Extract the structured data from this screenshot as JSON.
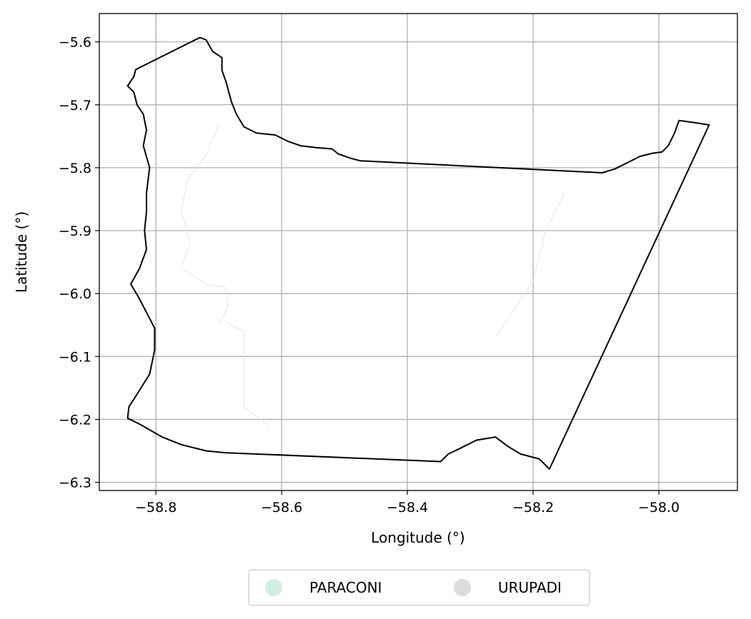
{
  "chart_data": {
    "type": "map",
    "xlabel": "Longitude (°)",
    "ylabel": "Latitude (°)",
    "xlim": [
      -58.89,
      -57.875
    ],
    "ylim": [
      -6.313,
      -5.555
    ],
    "xticks": [
      -58.8,
      -58.6,
      -58.4,
      -58.2,
      -58.0
    ],
    "xtick_labels": [
      "−58.8",
      "−58.6",
      "−58.4",
      "−58.2",
      "−58.0"
    ],
    "yticks": [
      -5.6,
      -5.7,
      -5.8,
      -5.9,
      -6.0,
      -6.1,
      -6.2,
      -6.3
    ],
    "ytick_labels": [
      "−5.6",
      "−5.7",
      "−5.8",
      "−5.9",
      "−6.0",
      "−6.1",
      "−6.2",
      "−6.3"
    ],
    "grid": true,
    "legend_position": "bottom-center",
    "legend": [
      {
        "label": "PARACONI",
        "color": "#d3ece0"
      },
      {
        "label": "URUPADI",
        "color": "#dcdcdc"
      }
    ],
    "boundary": [
      [
        -58.832,
        -5.644
      ],
      [
        -58.73,
        -5.593
      ],
      [
        -58.72,
        -5.597
      ],
      [
        -58.71,
        -5.615
      ],
      [
        -58.695,
        -5.625
      ],
      [
        -58.695,
        -5.645
      ],
      [
        -58.688,
        -5.665
      ],
      [
        -58.68,
        -5.695
      ],
      [
        -58.672,
        -5.715
      ],
      [
        -58.66,
        -5.735
      ],
      [
        -58.64,
        -5.745
      ],
      [
        -58.61,
        -5.748
      ],
      [
        -58.59,
        -5.758
      ],
      [
        -58.57,
        -5.765
      ],
      [
        -58.545,
        -5.768
      ],
      [
        -58.52,
        -5.77
      ],
      [
        -58.51,
        -5.778
      ],
      [
        -58.49,
        -5.785
      ],
      [
        -58.475,
        -5.789
      ],
      [
        -58.09,
        -5.808
      ],
      [
        -58.07,
        -5.802
      ],
      [
        -58.05,
        -5.792
      ],
      [
        -58.03,
        -5.782
      ],
      [
        -58.01,
        -5.777
      ],
      [
        -57.995,
        -5.775
      ],
      [
        -57.985,
        -5.765
      ],
      [
        -57.975,
        -5.745
      ],
      [
        -57.968,
        -5.725
      ],
      [
        -57.945,
        -5.728
      ],
      [
        -57.92,
        -5.732
      ],
      [
        -58.174,
        -6.279
      ],
      [
        -58.19,
        -6.263
      ],
      [
        -58.22,
        -6.255
      ],
      [
        -58.24,
        -6.243
      ],
      [
        -58.26,
        -6.228
      ],
      [
        -58.29,
        -6.233
      ],
      [
        -58.32,
        -6.248
      ],
      [
        -58.335,
        -6.255
      ],
      [
        -58.347,
        -6.267
      ],
      [
        -58.69,
        -6.253
      ],
      [
        -58.72,
        -6.25
      ],
      [
        -58.76,
        -6.24
      ],
      [
        -58.79,
        -6.228
      ],
      [
        -58.825,
        -6.208
      ],
      [
        -58.845,
        -6.198
      ],
      [
        -58.843,
        -6.18
      ],
      [
        -58.83,
        -6.16
      ],
      [
        -58.81,
        -6.128
      ],
      [
        -58.802,
        -6.09
      ],
      [
        -58.802,
        -6.055
      ],
      [
        -58.815,
        -6.03
      ],
      [
        -58.828,
        -6.005
      ],
      [
        -58.84,
        -5.985
      ],
      [
        -58.826,
        -5.96
      ],
      [
        -58.815,
        -5.93
      ],
      [
        -58.818,
        -5.9
      ],
      [
        -58.815,
        -5.87
      ],
      [
        -58.815,
        -5.84
      ],
      [
        -58.81,
        -5.8
      ],
      [
        -58.82,
        -5.765
      ],
      [
        -58.815,
        -5.74
      ],
      [
        -58.82,
        -5.715
      ],
      [
        -58.83,
        -5.7
      ],
      [
        -58.835,
        -5.68
      ],
      [
        -58.845,
        -5.67
      ],
      [
        -58.835,
        -5.655
      ],
      [
        -58.832,
        -5.644
      ]
    ],
    "faint_lines": [
      [
        [
          -58.7,
          -5.73
        ],
        [
          -58.72,
          -5.78
        ],
        [
          -58.75,
          -5.82
        ],
        [
          -58.76,
          -5.87
        ],
        [
          -58.745,
          -5.92
        ],
        [
          -58.76,
          -5.96
        ],
        [
          -58.72,
          -5.985
        ],
        [
          -58.69,
          -5.99
        ],
        [
          -58.685,
          -6.02
        ],
        [
          -58.7,
          -6.05
        ]
      ],
      [
        [
          -58.69,
          -6.045
        ],
        [
          -58.66,
          -6.06
        ],
        [
          -58.66,
          -6.18
        ],
        [
          -58.62,
          -6.21
        ]
      ],
      [
        [
          -58.15,
          -5.84
        ],
        [
          -58.18,
          -5.9
        ],
        [
          -58.2,
          -5.98
        ],
        [
          -58.26,
          -6.07
        ]
      ]
    ]
  }
}
